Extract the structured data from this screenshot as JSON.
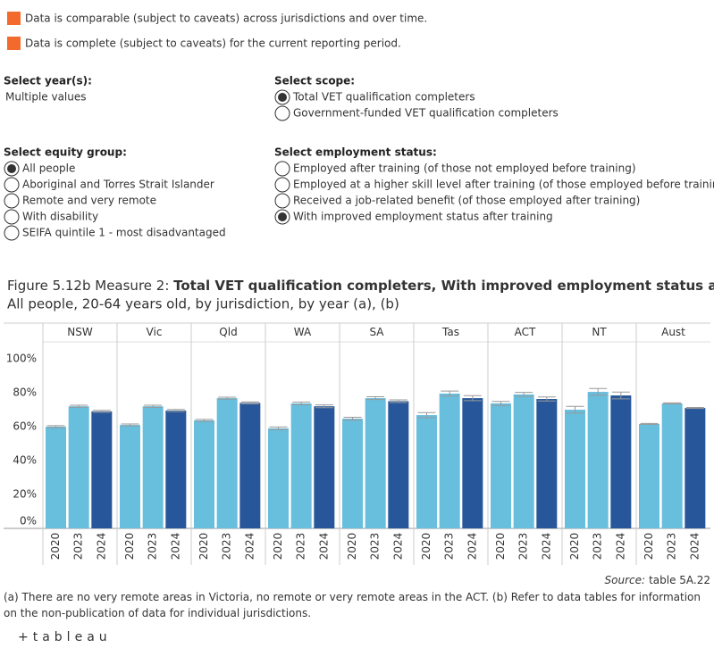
{
  "notes": [
    "Data is comparable (subject to caveats) across jurisdictions and over time.",
    "Data is complete (subject to caveats) for the current reporting period."
  ],
  "note_color": "#f26a2c",
  "filters": {
    "year": {
      "label": "Select year(s):",
      "value": "Multiple values"
    },
    "scope": {
      "label": "Select scope:",
      "options": [
        "Total VET qualification completers",
        "Government-funded VET qualification completers"
      ],
      "selected": 0
    },
    "equity": {
      "label": "Select equity group:",
      "options": [
        "All people",
        "Aboriginal and Torres Strait Islander",
        "Remote and very remote",
        "With disability",
        "SEIFA quintile 1 - most disadvantaged"
      ],
      "selected": 0
    },
    "employment": {
      "label": "Select employment status:",
      "options": [
        "Employed after training (of those not employed before training)",
        "Employed at a higher skill level after training (of those employed before training)",
        "Received a job-related benefit (of those employed after training)",
        "With improved employment status after training"
      ],
      "selected": 3
    }
  },
  "chart_data": {
    "type": "bar",
    "title_prefix": "Figure 5.12b Measure 2: ",
    "title": "Total VET qualification completers, With improved employment status after training",
    "subtitle": "All people, 20-64 years old, by jurisdiction, by year (a), (b)",
    "categories": [
      "NSW",
      "Vic",
      "Qld",
      "WA",
      "SA",
      "Tas",
      "ACT",
      "NT",
      "Aust"
    ],
    "series": [
      {
        "name": "2020",
        "color": "#67bedd",
        "values": [
          60,
          61,
          63.7,
          59,
          64.7,
          66.8,
          73.7,
          70,
          61.6
        ],
        "errors": [
          0.6,
          0.6,
          0.6,
          0.8,
          0.8,
          1.5,
          1.2,
          2,
          0.3
        ]
      },
      {
        "name": "2023",
        "color": "#67bedd",
        "values": [
          72,
          72,
          76.8,
          73.7,
          76.8,
          79.5,
          79,
          80.5,
          73.7
        ],
        "errors": [
          0.6,
          0.6,
          0.6,
          0.8,
          0.8,
          1.5,
          1.2,
          2,
          0.3
        ]
      },
      {
        "name": "2024",
        "color": "#27579a",
        "values": [
          69,
          69.5,
          74,
          72,
          75,
          76.8,
          76.3,
          78.4,
          71
        ],
        "errors": [
          0.6,
          0.6,
          0.6,
          0.8,
          0.8,
          1.5,
          1.2,
          2,
          0.3
        ]
      }
    ],
    "ylim": [
      0,
      110
    ],
    "yticks": [
      {
        "value": 0,
        "label": "0%"
      },
      {
        "value": 20,
        "label": "20%"
      },
      {
        "value": 40,
        "label": "40%"
      },
      {
        "value": 60,
        "label": "60%"
      },
      {
        "value": 80,
        "label": "80%"
      },
      {
        "value": 100,
        "label": "100%"
      }
    ],
    "grid": false,
    "source_label": "Source:",
    "source": "table 5A.22",
    "footnote": "(a) There are no very remote areas in Victoria, no remote or very remote areas in the ACT. (b) Refer to data tables for information on the non-publication of data for individual jurisdictions."
  },
  "footer": {
    "logo": "+tableau"
  }
}
